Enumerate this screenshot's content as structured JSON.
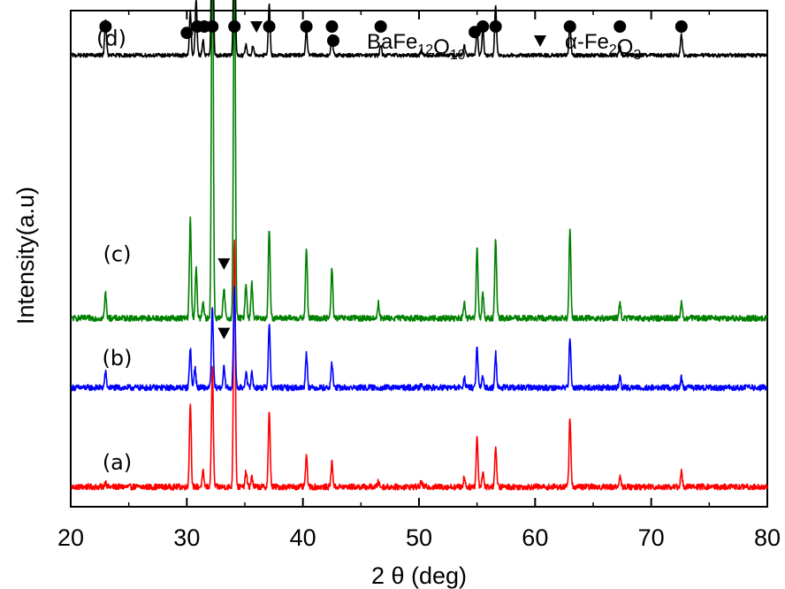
{
  "chart_data": {
    "type": "line",
    "xlabel": "2 θ (deg)",
    "ylabel": "Intensity(a.u)",
    "xlim": [
      20,
      80
    ],
    "x_ticks": [
      20,
      30,
      40,
      50,
      60,
      70,
      80
    ],
    "y_ticks_shown": false,
    "grid": false,
    "legend": {
      "placement": "top-right",
      "entries": [
        {
          "marker": "circle",
          "text": "BaFe12O19",
          "phase": "BaFe12O19"
        },
        {
          "marker": "triangle-down",
          "text": "α-Fe2O3",
          "phase": "alpha-Fe2O3"
        }
      ]
    },
    "series": [
      {
        "name": "(a)",
        "color": "#ff0000",
        "baseline": 0.04,
        "noise": 0.006,
        "peaks": [
          [
            23.0,
            0.01
          ],
          [
            30.3,
            0.17
          ],
          [
            31.4,
            0.03
          ],
          [
            32.2,
            0.24
          ],
          [
            34.1,
            0.5
          ],
          [
            35.1,
            0.03
          ],
          [
            35.6,
            0.02
          ],
          [
            37.1,
            0.15
          ],
          [
            40.3,
            0.06
          ],
          [
            42.5,
            0.05
          ],
          [
            46.5,
            0.01
          ],
          [
            50.2,
            0.01
          ],
          [
            53.9,
            0.02
          ],
          [
            55.0,
            0.1
          ],
          [
            55.5,
            0.03
          ],
          [
            56.6,
            0.08
          ],
          [
            63.0,
            0.14
          ],
          [
            67.3,
            0.02
          ],
          [
            72.6,
            0.03
          ]
        ]
      },
      {
        "name": "(b)",
        "color": "#0000ff",
        "baseline": 0.24,
        "noise": 0.006,
        "peaks": [
          [
            23.0,
            0.03
          ],
          [
            30.3,
            0.08
          ],
          [
            30.7,
            0.04
          ],
          [
            32.2,
            0.16
          ],
          [
            33.2,
            0.04
          ],
          [
            34.1,
            0.2
          ],
          [
            35.1,
            0.03
          ],
          [
            35.6,
            0.03
          ],
          [
            37.1,
            0.13
          ],
          [
            40.3,
            0.07
          ],
          [
            42.5,
            0.05
          ],
          [
            50.2,
            0.01
          ],
          [
            53.9,
            0.02
          ],
          [
            55.0,
            0.08
          ],
          [
            55.5,
            0.02
          ],
          [
            56.6,
            0.07
          ],
          [
            63.0,
            0.1
          ],
          [
            67.3,
            0.02
          ],
          [
            72.6,
            0.02
          ]
        ]
      },
      {
        "name": "(c)",
        "color": "#008000",
        "baseline": 0.38,
        "noise": 0.006,
        "peaks": [
          [
            23.0,
            0.05
          ],
          [
            30.3,
            0.2
          ],
          [
            30.8,
            0.1
          ],
          [
            31.4,
            0.03
          ],
          [
            32.2,
            0.85
          ],
          [
            33.2,
            0.06
          ],
          [
            34.1,
            0.8
          ],
          [
            35.1,
            0.07
          ],
          [
            35.6,
            0.07
          ],
          [
            37.1,
            0.18
          ],
          [
            40.3,
            0.14
          ],
          [
            42.5,
            0.1
          ],
          [
            46.5,
            0.03
          ],
          [
            53.9,
            0.03
          ],
          [
            55.0,
            0.14
          ],
          [
            55.5,
            0.05
          ],
          [
            56.6,
            0.16
          ],
          [
            63.0,
            0.18
          ],
          [
            67.3,
            0.03
          ],
          [
            72.6,
            0.03
          ]
        ]
      },
      {
        "name": "(d)",
        "color": "#000000",
        "baseline": 0.91,
        "noise": 0.004,
        "peaks": [
          [
            23.0,
            0.07
          ],
          [
            30.3,
            0.09
          ],
          [
            30.8,
            0.11
          ],
          [
            31.4,
            0.03
          ],
          [
            32.2,
            0.34
          ],
          [
            34.1,
            0.28
          ],
          [
            35.1,
            0.02
          ],
          [
            35.7,
            0.02
          ],
          [
            37.1,
            0.1
          ],
          [
            40.3,
            0.05
          ],
          [
            42.5,
            0.04
          ],
          [
            46.7,
            0.02
          ],
          [
            50.2,
            0.01
          ],
          [
            53.9,
            0.02
          ],
          [
            55.0,
            0.05
          ],
          [
            55.5,
            0.05
          ],
          [
            56.6,
            0.1
          ],
          [
            63.0,
            0.06
          ],
          [
            67.3,
            0.02
          ],
          [
            72.6,
            0.04
          ]
        ]
      }
    ],
    "markers": [
      {
        "series": "(d)",
        "phase": "BaFe12O19",
        "x": [
          23.0,
          30.0,
          30.9,
          31.5,
          32.2,
          34.1,
          37.1,
          40.3,
          42.5,
          46.7,
          54.8,
          55.5,
          56.6,
          63.0,
          67.3,
          72.6
        ]
      },
      {
        "series": "(d)",
        "phase": "alpha-Fe2O3",
        "x": [
          36.0
        ]
      },
      {
        "series": "(c)",
        "phase": "alpha-Fe2O3",
        "x": [
          33.2
        ]
      },
      {
        "series": "(b)",
        "phase": "alpha-Fe2O3",
        "x": [
          33.2
        ]
      }
    ]
  }
}
